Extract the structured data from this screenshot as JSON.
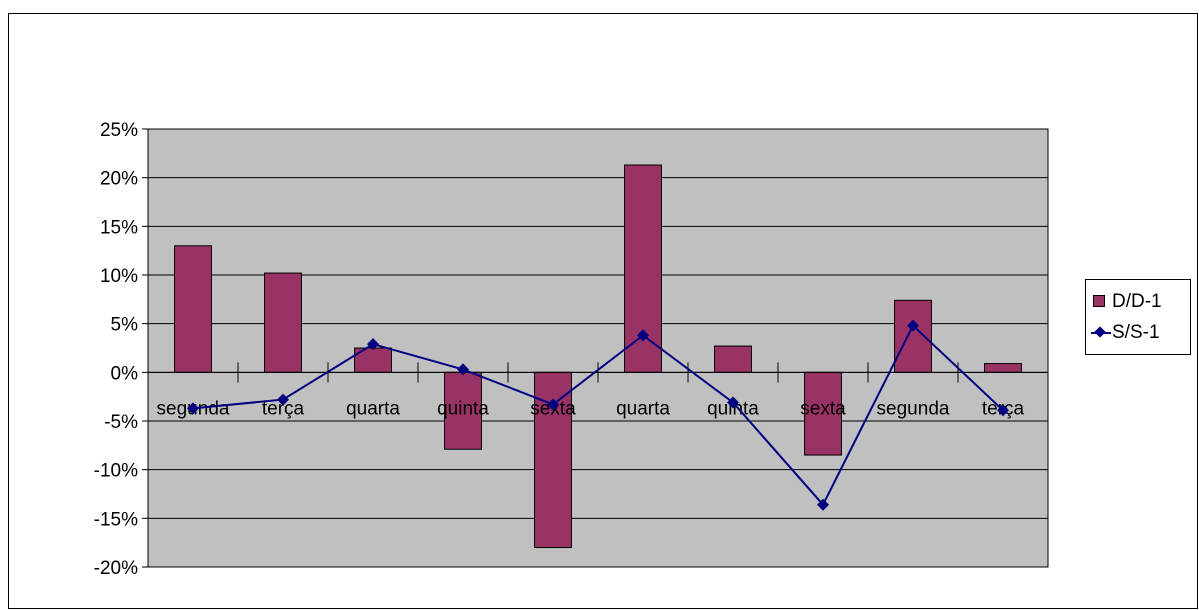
{
  "colors": {
    "plot_background": "#c0c0c0",
    "bar_fill": "#993366",
    "line_color": "#000080",
    "axis_color": "#000000"
  },
  "chart_data": {
    "type": "bar",
    "categories": [
      "segunda",
      "terça",
      "quarta",
      "quinta",
      "sexta",
      "quarta",
      "quinta",
      "sexta",
      "segunda",
      "terça"
    ],
    "series": [
      {
        "name": "D/D-1",
        "type": "bar",
        "values": [
          13.0,
          10.2,
          2.5,
          -7.9,
          -18.0,
          21.3,
          2.7,
          -8.5,
          7.4,
          0.9
        ]
      },
      {
        "name": "S/S-1",
        "type": "line",
        "marker": "diamond",
        "values": [
          -3.7,
          -2.8,
          2.9,
          0.3,
          -3.3,
          3.8,
          -3.1,
          -13.6,
          4.8,
          -3.9
        ]
      }
    ],
    "ylim": [
      -20,
      25
    ],
    "y_ticks": [
      "25%",
      "20%",
      "15%",
      "10%",
      "5%",
      "0%",
      "-5%",
      "-10%",
      "-15%",
      "-20%"
    ],
    "y_tick_values": [
      25,
      20,
      15,
      10,
      5,
      0,
      -5,
      -10,
      -15,
      -20
    ],
    "grid": true,
    "legend_position": "right"
  }
}
